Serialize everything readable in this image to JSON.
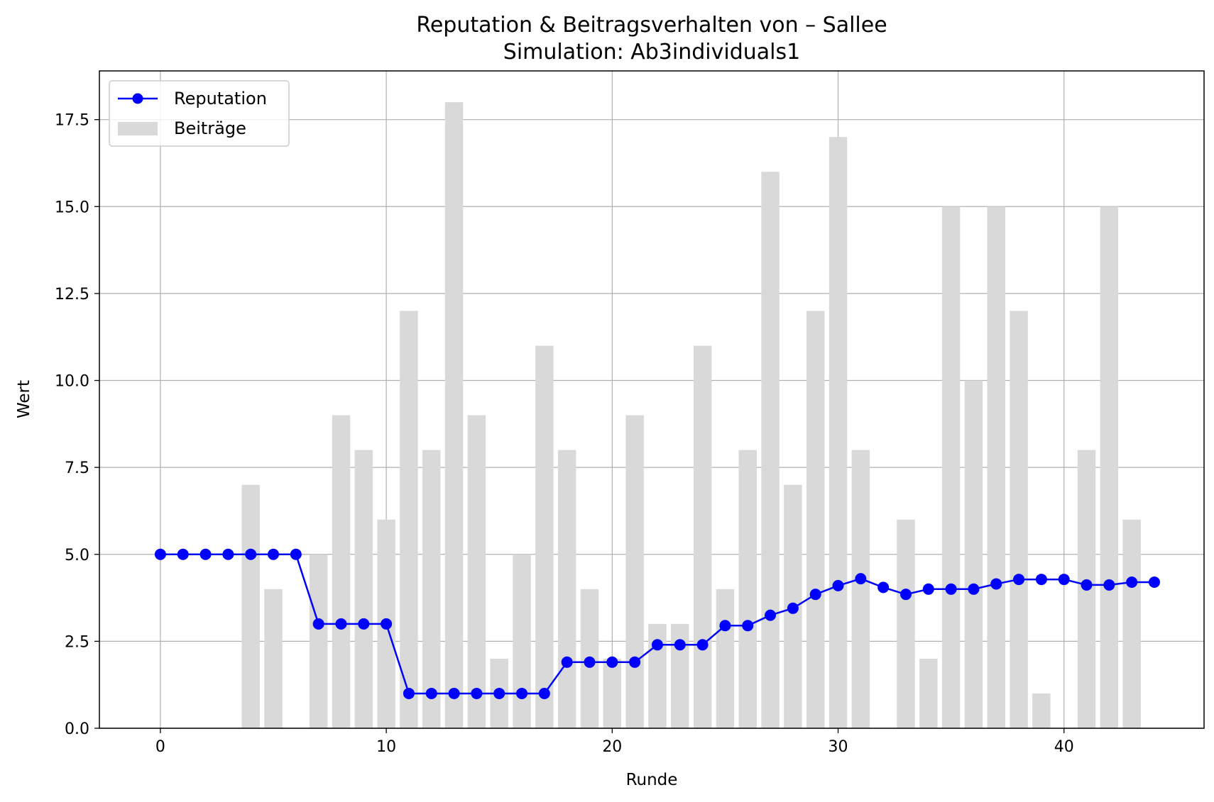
{
  "chart_data": {
    "type": "bar",
    "title": "Reputation & Beitragsverhalten von – Sallee",
    "subtitle": "Simulation: Ab3individuals1",
    "xlabel": "Runde",
    "ylabel": "Wert",
    "xlim": [
      -2.7,
      46.2
    ],
    "ylim": [
      0,
      18.9
    ],
    "xticks": [
      0,
      10,
      20,
      30,
      40
    ],
    "yticks": [
      0,
      2.5,
      5,
      7.5,
      10,
      12.5,
      15,
      17.5
    ],
    "xtick_labels": [
      "0",
      "10",
      "20",
      "30",
      "40"
    ],
    "ytick_labels": [
      "0.0",
      "2.5",
      "5.0",
      "7.5",
      "10.0",
      "12.5",
      "15.0",
      "17.5"
    ],
    "grid": true,
    "legend_position": "top-left",
    "x": [
      0,
      1,
      2,
      3,
      4,
      5,
      6,
      7,
      8,
      9,
      10,
      11,
      12,
      13,
      14,
      15,
      16,
      17,
      18,
      19,
      20,
      21,
      22,
      23,
      24,
      25,
      26,
      27,
      28,
      29,
      30,
      31,
      32,
      33,
      34,
      35,
      36,
      37,
      38,
      39,
      40,
      41,
      42,
      43,
      44
    ],
    "series": [
      {
        "name": "Beiträge",
        "type": "bar",
        "color": "#d9d9d9",
        "values": [
          0,
          0,
          0,
          0,
          7,
          4,
          0,
          5,
          9,
          8,
          6,
          12,
          8,
          18,
          9,
          2,
          5,
          11,
          8,
          4,
          2,
          9,
          3,
          3,
          11,
          4,
          8,
          16,
          7,
          12,
          17,
          8,
          0,
          6,
          2,
          15,
          10,
          15,
          12,
          1,
          0,
          8,
          15,
          6,
          0
        ]
      },
      {
        "name": "Reputation",
        "type": "line",
        "color": "#0000ff",
        "values": [
          5,
          5,
          5,
          5,
          5,
          5,
          5,
          3,
          3,
          3,
          3,
          1,
          1,
          1,
          1,
          1,
          1,
          1,
          1.9,
          1.9,
          1.9,
          1.9,
          2.4,
          2.4,
          2.4,
          2.95,
          2.95,
          3.25,
          3.45,
          3.85,
          4.1,
          4.3,
          4.05,
          3.85,
          4.0,
          4.0,
          4.0,
          4.15,
          4.28,
          4.28,
          4.28,
          4.12,
          4.12,
          4.2,
          4.2
        ]
      }
    ]
  }
}
